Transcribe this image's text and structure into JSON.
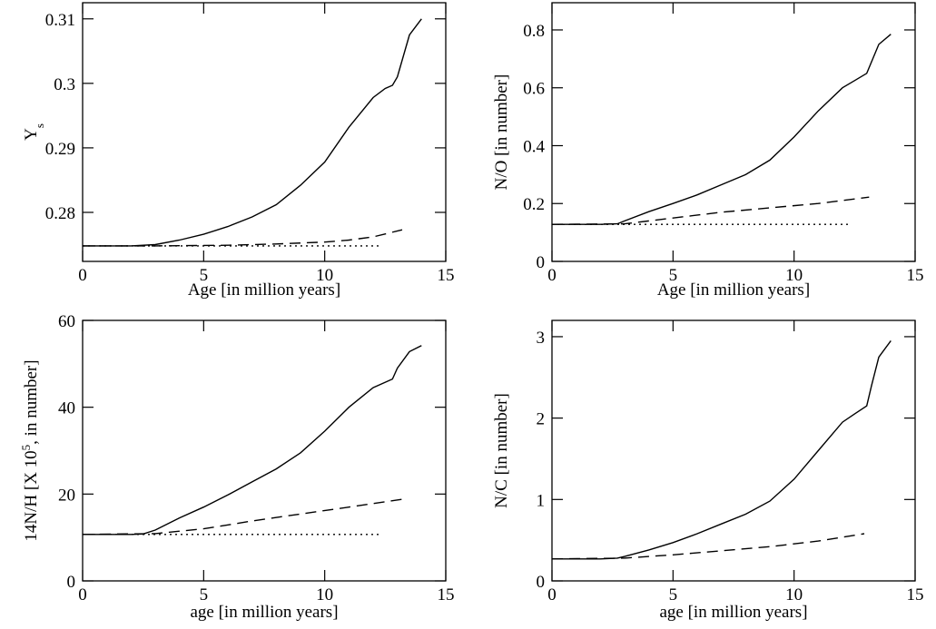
{
  "chart_data": [
    {
      "type": "line",
      "xlabel": "Age [in million years]",
      "ylabel": [
        "Y",
        "s"
      ],
      "ylabel_script": "sub",
      "xlim": [
        0,
        15
      ],
      "xticks": [
        0,
        5,
        10,
        15
      ],
      "ylim": [
        0.2724,
        0.3125
      ],
      "yticks": [
        0.28,
        0.29,
        0.3,
        0.31
      ],
      "series": [
        {
          "color": "#000000",
          "dash": "solid",
          "x": [
            0,
            1,
            2,
            3,
            4,
            5,
            6,
            7,
            8,
            9,
            10,
            11,
            12,
            12.5,
            12.8,
            13,
            13.5,
            14
          ],
          "values": [
            0.2748,
            0.2748,
            0.2748,
            0.275,
            0.2757,
            0.2766,
            0.2778,
            0.2793,
            0.2812,
            0.2842,
            0.2878,
            0.2932,
            0.2978,
            0.2992,
            0.2997,
            0.301,
            0.3075,
            0.31
          ]
        },
        {
          "color": "#000000",
          "dash": "dashed",
          "x": [
            0,
            3,
            6,
            8,
            10,
            11,
            12,
            13.2
          ],
          "values": [
            0.2748,
            0.2748,
            0.2749,
            0.2751,
            0.2754,
            0.2757,
            0.2762,
            0.2773
          ]
        },
        {
          "color": "#000000",
          "dash": "dotted",
          "x": [
            0,
            12.3
          ],
          "values": [
            0.2748,
            0.2748
          ]
        }
      ]
    },
    {
      "type": "line",
      "xlabel": "Age [in million years]",
      "ylabel": [
        "N/O [in number]"
      ],
      "xlim": [
        0,
        15
      ],
      "xticks": [
        0,
        5,
        10,
        15
      ],
      "ylim": [
        0,
        0.894
      ],
      "yticks": [
        0,
        0.2,
        0.4,
        0.6,
        0.8
      ],
      "series": [
        {
          "color": "#000000",
          "dash": "solid",
          "x": [
            0,
            1,
            2,
            2.7,
            3,
            4,
            5,
            6,
            7,
            8,
            9,
            10,
            11,
            12,
            12.5,
            13,
            13.5,
            14
          ],
          "values": [
            0.128,
            0.128,
            0.128,
            0.13,
            0.14,
            0.172,
            0.2,
            0.23,
            0.265,
            0.3,
            0.35,
            0.43,
            0.52,
            0.6,
            0.625,
            0.65,
            0.75,
            0.785
          ]
        },
        {
          "color": "#000000",
          "dash": "dashed",
          "x": [
            0,
            3,
            5,
            7,
            9,
            11,
            13.1
          ],
          "values": [
            0.128,
            0.13,
            0.15,
            0.17,
            0.185,
            0.2,
            0.222
          ]
        },
        {
          "color": "#000000",
          "dash": "dotted",
          "x": [
            0,
            12.3
          ],
          "values": [
            0.128,
            0.128
          ]
        }
      ]
    },
    {
      "type": "line",
      "xlabel": "age [in million years]",
      "ylabel": [
        "14N/H [X 10",
        "5",
        ", in number]"
      ],
      "ylabel_script": "super",
      "xlim": [
        0,
        15
      ],
      "xticks": [
        0,
        5,
        10,
        15
      ],
      "ylim": [
        0,
        60
      ],
      "yticks": [
        0,
        20,
        40,
        60
      ],
      "series": [
        {
          "color": "#000000",
          "dash": "solid",
          "x": [
            0,
            2,
            2.5,
            3,
            4,
            5,
            6,
            7,
            8,
            9,
            10,
            11,
            12,
            12.8,
            13,
            13.5,
            14
          ],
          "values": [
            10.7,
            10.7,
            10.8,
            11.7,
            14.5,
            17,
            19.8,
            22.8,
            25.8,
            29.5,
            34.5,
            40,
            44.5,
            46.5,
            49,
            52.8,
            54.2
          ]
        },
        {
          "color": "#000000",
          "dash": "dashed",
          "x": [
            0,
            3,
            5,
            7,
            9,
            11,
            13.2
          ],
          "values": [
            10.7,
            10.9,
            12,
            13.8,
            15.4,
            17,
            18.8
          ]
        },
        {
          "color": "#000000",
          "dash": "dotted",
          "x": [
            0,
            12.3
          ],
          "values": [
            10.7,
            10.7
          ]
        }
      ]
    },
    {
      "type": "line",
      "xlabel": "age [in million years]",
      "ylabel": [
        "N/C [in number]"
      ],
      "xlim": [
        0,
        15
      ],
      "xticks": [
        0,
        5,
        10,
        15
      ],
      "ylim": [
        0,
        3.2
      ],
      "yticks": [
        0,
        1,
        2,
        3
      ],
      "series": [
        {
          "color": "#000000",
          "dash": "solid",
          "x": [
            0,
            2,
            2.7,
            3,
            4,
            5,
            6,
            7,
            8,
            9,
            10,
            11,
            12,
            12.5,
            13,
            13.2,
            13.5,
            14
          ],
          "values": [
            0.27,
            0.27,
            0.28,
            0.3,
            0.38,
            0.47,
            0.58,
            0.7,
            0.82,
            0.98,
            1.25,
            1.6,
            1.95,
            2.05,
            2.15,
            2.4,
            2.75,
            2.95
          ]
        },
        {
          "color": "#000000",
          "dash": "dashed",
          "x": [
            0,
            3,
            5,
            7,
            9,
            11,
            12.9
          ],
          "values": [
            0.27,
            0.28,
            0.32,
            0.37,
            0.42,
            0.49,
            0.58
          ]
        }
      ]
    }
  ]
}
